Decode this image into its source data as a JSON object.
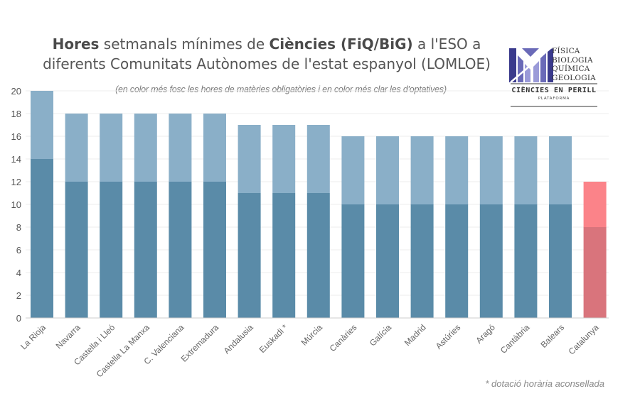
{
  "chart_data": {
    "type": "bar",
    "stacked": true,
    "title_parts": [
      {
        "text": "Hores",
        "bold": true
      },
      {
        "text": " setmanals mínimes de ",
        "bold": false
      },
      {
        "text": "Ciències (FiQ/BiG)",
        "bold": true
      },
      {
        "text": " a l'ESO a diferents Comunitats Autònomes de l'estat espanyol (LOMLOE)",
        "bold": false
      }
    ],
    "subtitle": "(en color més fosc les hores de matèries obligatòries i en color més clar les d'optatives)",
    "footnote": "* dotació horària aconsellada",
    "xlabel": "",
    "ylabel": "",
    "ylim": [
      0,
      20
    ],
    "yticks": [
      0,
      2,
      4,
      6,
      8,
      10,
      12,
      14,
      16,
      18,
      20
    ],
    "grid": true,
    "legend": "none",
    "categories": [
      "La Rioja",
      "Navarra",
      "Castella i Lleó",
      "Castella La Manxa",
      "C. Valenciana",
      "Extremadura",
      "Andalusia",
      "Euskadi *",
      "Múrcia",
      "Canàries",
      "Galícia",
      "Madrid",
      "Astúries",
      "Aragó",
      "Cantàbria",
      "Balears",
      "Catalunya"
    ],
    "series": [
      {
        "name": "obligatòries",
        "values": [
          14,
          12,
          12,
          12,
          12,
          12,
          11,
          11,
          11,
          10,
          10,
          10,
          10,
          10,
          10,
          10,
          8
        ]
      },
      {
        "name": "optatives",
        "values": [
          6,
          6,
          6,
          6,
          6,
          6,
          6,
          6,
          6,
          6,
          6,
          6,
          6,
          6,
          6,
          6,
          4
        ]
      }
    ],
    "totals": [
      20,
      18,
      18,
      18,
      18,
      18,
      17,
      17,
      17,
      16,
      16,
      16,
      16,
      16,
      16,
      16,
      12
    ],
    "colors": {
      "obligatory": "#5a8ba8",
      "optional": "#8aafc8",
      "highlight_obligatory": "#d9747c",
      "highlight_optional": "#fb8389",
      "grid": "#ececec",
      "axis": "#cccccc"
    },
    "highlight_category": "Catalunya"
  },
  "logo": {
    "lines": [
      "FÍSICA",
      "BIOLOGIA",
      "QUÍMICA",
      "GEOLOGIA"
    ],
    "name": "CIÈNCIES EN PERILL",
    "sub": "PLATAFORMA",
    "colors": [
      "#3a3a8c",
      "#6a6ab8",
      "#9a9ad8"
    ]
  }
}
